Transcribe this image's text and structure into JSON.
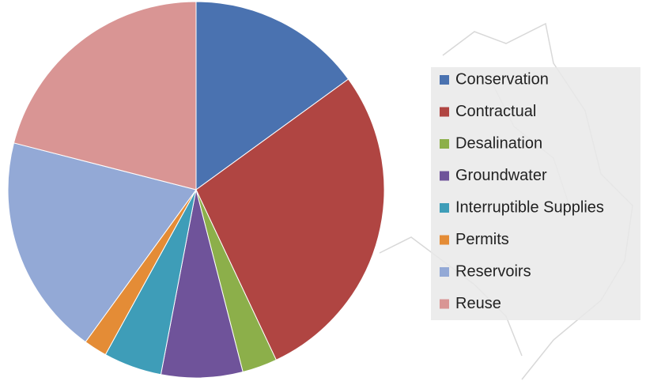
{
  "chart_data": {
    "type": "pie",
    "categories": [
      "Conservation",
      "Contractual",
      "Desalination",
      "Groundwater",
      "Interruptible Supplies",
      "Permits",
      "Reservoirs",
      "Reuse"
    ],
    "values": [
      15,
      28,
      3,
      7,
      5,
      2,
      19,
      21
    ],
    "colors": [
      "#4a72b0",
      "#b04542",
      "#8caf4a",
      "#6f539a",
      "#3e9db8",
      "#e48c36",
      "#93a9d6",
      "#d99594"
    ],
    "legend": "right"
  }
}
